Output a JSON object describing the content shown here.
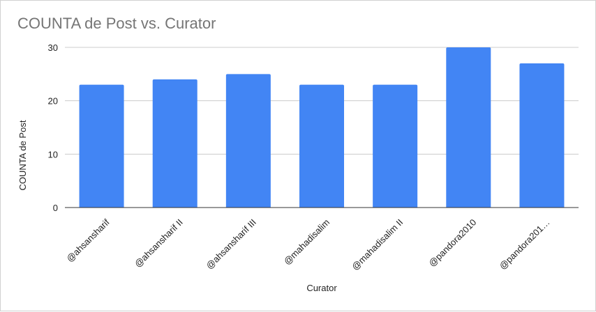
{
  "chart_data": {
    "type": "bar",
    "title": "COUNTA de Post vs. Curator",
    "xlabel": "Curator",
    "ylabel": "COUNTA de Post",
    "categories": [
      "@ahsansharif",
      "@ahsansharif II",
      "@ahsansharif III",
      "@mahadisalim",
      "@mahadisalim II",
      "@pandora2010",
      "@pandora201…"
    ],
    "values": [
      23,
      24,
      25,
      23,
      23,
      30,
      27
    ],
    "ylim": [
      0,
      30
    ],
    "yticks": [
      "0",
      "10",
      "20",
      "30"
    ],
    "grid": true,
    "legend": "none",
    "bar_color": "#4285f4"
  }
}
